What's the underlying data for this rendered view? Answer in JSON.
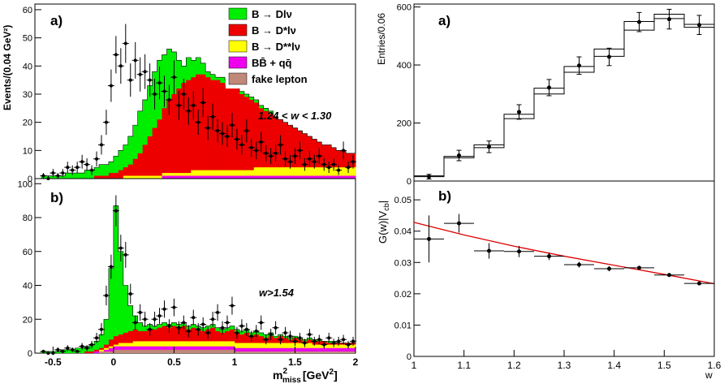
{
  "chart_data": [
    {
      "panel": "left-a",
      "type": "stacked-histogram",
      "panel_label": "a)",
      "ylabel": "Events/(0.04 GeV²)",
      "annotation": "1.24 < w < 1.30",
      "xlim": [
        -0.65,
        2.0
      ],
      "ylim": [
        0,
        62
      ],
      "yticks": [
        0,
        10,
        20,
        30,
        40,
        50,
        60
      ],
      "legend": {
        "position": "top-right",
        "entries": [
          {
            "name": "B → Dlν",
            "color": "#00ee00"
          },
          {
            "name": "B → D*lν",
            "color": "#ee0000"
          },
          {
            "name": "B → D**lν",
            "color": "#ffff00"
          },
          {
            "name": "BB̄ + qq̄",
            "color": "#ee00ee"
          },
          {
            "name": "fake lepton",
            "color": "#c08878"
          }
        ]
      },
      "series_order": [
        "fake lepton",
        "BB̄ + qq̄",
        "B → D**lν",
        "B → D*lν",
        "B → Dlν"
      ],
      "bin_edges_start": -0.6,
      "bin_width": 0.04,
      "stack_totals": [
        1,
        1,
        1,
        1,
        1,
        2,
        2,
        2,
        2,
        3,
        3,
        4,
        5,
        5,
        6,
        8,
        10,
        12,
        15,
        19,
        24,
        28,
        33,
        38,
        42,
        44,
        46,
        45,
        42,
        40,
        43,
        42,
        43,
        41,
        38,
        37,
        36,
        36,
        35,
        34,
        33,
        31,
        30,
        29,
        28,
        26,
        25,
        24,
        22,
        21,
        20,
        19,
        18,
        17,
        16,
        15,
        14,
        13,
        12,
        12,
        11,
        10,
        10,
        9,
        9,
        8,
        8,
        7,
        7,
        7,
        6,
        6,
        6,
        6,
        5,
        5,
        5,
        5,
        5,
        5
      ],
      "dstar_tops": [
        0,
        0,
        0,
        0,
        0,
        0,
        0,
        0,
        0,
        0,
        0,
        1,
        1,
        1,
        2,
        2,
        3,
        4,
        5,
        7,
        9,
        12,
        15,
        18,
        21,
        25,
        28,
        30,
        32,
        34,
        35,
        36,
        37,
        37,
        36,
        35,
        35,
        34,
        33,
        33,
        32,
        30,
        29,
        28,
        27,
        25,
        24,
        23,
        22,
        21,
        20,
        19,
        18,
        17,
        16,
        15,
        14,
        13,
        12,
        12,
        11,
        10,
        10,
        9,
        9,
        8,
        8,
        7,
        7,
        7,
        6,
        6,
        6,
        6,
        5,
        5,
        5,
        5,
        5,
        5
      ],
      "dss_tops": [
        0,
        0,
        0,
        0,
        0,
        0,
        0,
        0,
        0,
        0,
        0,
        0,
        0,
        0,
        0,
        0,
        0,
        1,
        1,
        1,
        1,
        1,
        1,
        1,
        1,
        2,
        2,
        2,
        2,
        2,
        2,
        3,
        3,
        3,
        3,
        3,
        3,
        3,
        3,
        3,
        3,
        3,
        3,
        3,
        4,
        4,
        4,
        4,
        4,
        4,
        4,
        4,
        4,
        4,
        4,
        4,
        4,
        4,
        4,
        4,
        4,
        4,
        4,
        4,
        4,
        4,
        4,
        4,
        4,
        4,
        4,
        4,
        4,
        4,
        4,
        4,
        4,
        4,
        4,
        4
      ],
      "bg_tops": [
        0,
        0,
        0,
        0,
        0,
        0,
        0,
        0,
        0,
        0,
        0,
        0,
        0,
        0,
        0,
        0,
        0,
        0,
        0,
        0,
        0,
        0,
        0,
        0,
        0,
        1,
        1,
        1,
        1,
        1,
        1,
        1,
        1,
        1,
        1,
        1,
        1,
        1,
        1,
        1,
        1,
        1,
        1,
        1,
        1,
        1,
        1,
        1,
        1,
        1,
        1,
        1,
        1,
        1,
        1,
        1,
        1,
        1,
        1,
        1,
        1,
        1,
        1,
        1,
        1,
        1,
        1,
        1,
        1,
        1,
        1,
        1,
        1,
        1,
        1,
        1,
        1,
        1,
        1,
        1
      ],
      "points_x": [
        -0.58,
        -0.54,
        -0.5,
        -0.46,
        -0.42,
        -0.38,
        -0.34,
        -0.3,
        -0.26,
        -0.22,
        -0.18,
        -0.14,
        -0.1,
        -0.06,
        -0.02,
        0.02,
        0.06,
        0.1,
        0.14,
        0.18,
        0.22,
        0.26,
        0.3,
        0.34,
        0.38,
        0.42,
        0.46,
        0.5,
        0.54,
        0.58,
        0.62,
        0.66,
        0.7,
        0.74,
        0.78,
        0.82,
        0.86,
        0.9,
        0.94,
        0.98,
        1.02,
        1.06,
        1.1,
        1.14,
        1.18,
        1.22,
        1.26,
        1.3,
        1.34,
        1.38,
        1.42,
        1.46,
        1.5,
        1.54,
        1.58,
        1.62,
        1.66,
        1.7,
        1.74,
        1.78,
        1.82,
        1.86,
        1.9,
        1.94,
        1.98
      ],
      "points_y": [
        1,
        0,
        2,
        1,
        2,
        4,
        3,
        4,
        6,
        5,
        3,
        7,
        12,
        20,
        33,
        44,
        40,
        48,
        35,
        42,
        37,
        38,
        35,
        30,
        34,
        31,
        28,
        36,
        26,
        30,
        24,
        26,
        20,
        27,
        18,
        22,
        17,
        16,
        15,
        19,
        14,
        12,
        17,
        11,
        10,
        13,
        9,
        8,
        9,
        12,
        7,
        6,
        8,
        10,
        5,
        7,
        6,
        8,
        5,
        4,
        5,
        3,
        10,
        4,
        6
      ]
    },
    {
      "panel": "left-b",
      "type": "stacked-histogram",
      "panel_label": "b)",
      "annotation": "w>1.54",
      "xlabel": "m²miss [GeV²]",
      "xlim": [
        -0.65,
        2.0
      ],
      "ylim": [
        0,
        103
      ],
      "yticks": [
        0,
        20,
        40,
        60,
        80,
        100
      ],
      "xticks": [
        -0.5,
        0,
        0.5,
        1,
        1.5,
        2
      ],
      "xticklabels": [
        "-0.5",
        "0",
        "0.5",
        "1",
        "1.5",
        "2"
      ],
      "bin_edges_start": -0.6,
      "bin_width": 0.04,
      "stack_totals": [
        1,
        1,
        1,
        1,
        2,
        2,
        2,
        3,
        3,
        4,
        5,
        7,
        11,
        20,
        50,
        87,
        60,
        40,
        28,
        22,
        18,
        16,
        17,
        16,
        17,
        18,
        17,
        18,
        17,
        18,
        16,
        17,
        16,
        15,
        16,
        17,
        15,
        14,
        15,
        16,
        14,
        13,
        14,
        12,
        13,
        12,
        11,
        12,
        10,
        11,
        10,
        9,
        10,
        9,
        8,
        9,
        8,
        8,
        7,
        7,
        7,
        6,
        6,
        6,
        6,
        5,
        5,
        5,
        5,
        5,
        5,
        5,
        5,
        5,
        5,
        5,
        5,
        5,
        5,
        5
      ],
      "dstar_tops": [
        0,
        0,
        0,
        0,
        0,
        0,
        0,
        0,
        0,
        1,
        1,
        2,
        3,
        5,
        8,
        10,
        11,
        12,
        13,
        14,
        13,
        13,
        14,
        14,
        15,
        16,
        15,
        16,
        15,
        16,
        14,
        15,
        14,
        13,
        14,
        15,
        13,
        12,
        13,
        14,
        12,
        11,
        12,
        10,
        11,
        10,
        9,
        10,
        9,
        10,
        9,
        8,
        9,
        8,
        7,
        8,
        7,
        7,
        7,
        6,
        6,
        6,
        6,
        6,
        6,
        5,
        5,
        5,
        5,
        5,
        5,
        5,
        5,
        5,
        5,
        5,
        5,
        5,
        5,
        5
      ],
      "dss_tops": [
        0,
        0,
        0,
        0,
        0,
        0,
        0,
        0,
        0,
        0,
        0,
        1,
        2,
        3,
        4,
        5,
        6,
        6,
        6,
        7,
        7,
        7,
        7,
        7,
        7,
        7,
        7,
        7,
        7,
        7,
        7,
        7,
        7,
        7,
        7,
        7,
        7,
        7,
        7,
        7,
        6,
        6,
        6,
        6,
        6,
        6,
        6,
        6,
        6,
        6,
        6,
        6,
        6,
        6,
        6,
        6,
        5,
        5,
        5,
        5,
        5,
        5,
        5,
        5,
        5,
        5,
        4,
        4,
        4,
        4,
        4,
        4,
        4,
        4,
        4,
        4,
        4,
        4,
        4,
        4
      ],
      "bg_tops": [
        0,
        0,
        0,
        0,
        0,
        0,
        0,
        0,
        0,
        0,
        0,
        1,
        1,
        2,
        3,
        4,
        4,
        4,
        4,
        4,
        4,
        4,
        4,
        4,
        4,
        4,
        4,
        4,
        4,
        4,
        4,
        4,
        4,
        4,
        4,
        4,
        4,
        4,
        4,
        4,
        3,
        3,
        3,
        3,
        3,
        3,
        3,
        3,
        3,
        3,
        3,
        3,
        3,
        3,
        3,
        3,
        3,
        3,
        3,
        3,
        3,
        3,
        3,
        3,
        3,
        3,
        2,
        2,
        2,
        2,
        2,
        2,
        2,
        2,
        2,
        2,
        2,
        2,
        2,
        2
      ],
      "fake_tops": [
        0,
        0,
        0,
        0,
        0,
        0,
        0,
        0,
        0,
        0,
        0,
        0,
        1,
        1,
        1,
        2,
        2,
        2,
        2,
        2,
        2,
        2,
        2,
        2,
        2,
        2,
        2,
        2,
        2,
        2,
        2,
        2,
        2,
        2,
        2,
        2,
        2,
        2,
        2,
        2,
        1,
        1,
        1,
        1,
        1,
        1,
        1,
        1,
        1,
        1,
        1,
        1,
        1,
        1,
        1,
        1,
        1,
        1,
        1,
        1,
        1,
        1,
        1,
        1,
        1,
        1,
        1,
        1,
        1,
        1,
        1,
        1,
        1,
        1,
        1,
        1,
        1,
        1,
        1,
        1
      ],
      "points_x": [
        -0.58,
        -0.54,
        -0.5,
        -0.46,
        -0.42,
        -0.38,
        -0.34,
        -0.3,
        -0.26,
        -0.22,
        -0.18,
        -0.14,
        -0.1,
        -0.06,
        -0.02,
        0.02,
        0.06,
        0.1,
        0.14,
        0.18,
        0.22,
        0.26,
        0.3,
        0.34,
        0.38,
        0.42,
        0.46,
        0.5,
        0.54,
        0.58,
        0.62,
        0.66,
        0.7,
        0.74,
        0.78,
        0.82,
        0.86,
        0.9,
        0.94,
        0.98,
        1.02,
        1.06,
        1.1,
        1.14,
        1.18,
        1.22,
        1.26,
        1.3,
        1.34,
        1.38,
        1.42,
        1.46,
        1.5,
        1.54,
        1.58,
        1.62,
        1.66,
        1.7,
        1.74,
        1.78,
        1.82,
        1.86,
        1.9,
        1.94,
        1.98
      ],
      "points_y": [
        1,
        0,
        0,
        2,
        1,
        3,
        2,
        1,
        4,
        3,
        5,
        9,
        14,
        34,
        51,
        84,
        62,
        58,
        35,
        18,
        24,
        20,
        14,
        20,
        22,
        26,
        16,
        27,
        15,
        18,
        13,
        21,
        14,
        17,
        12,
        20,
        24,
        15,
        18,
        28,
        12,
        16,
        14,
        10,
        13,
        18,
        8,
        11,
        15,
        8,
        12,
        10,
        7,
        9,
        6,
        11,
        7,
        8,
        5,
        9,
        6,
        7,
        8,
        5,
        7
      ]
    },
    {
      "panel": "right-a",
      "type": "histogram",
      "panel_label": "a)",
      "ylabel": "Entries/0.06",
      "xlim": [
        1.0,
        1.6
      ],
      "ylim": [
        0,
        610
      ],
      "yticks": [
        0,
        200,
        400,
        600
      ],
      "bin_edges": [
        1.0,
        1.06,
        1.12,
        1.18,
        1.24,
        1.3,
        1.36,
        1.42,
        1.48,
        1.54,
        1.6
      ],
      "histogram_1": [
        18,
        85,
        125,
        230,
        320,
        395,
        455,
        550,
        575,
        540
      ],
      "histogram_2": [
        15,
        80,
        115,
        215,
        300,
        375,
        430,
        520,
        560,
        530
      ],
      "points": [
        {
          "x": 1.03,
          "y": 15,
          "err": 8
        },
        {
          "x": 1.09,
          "y": 88,
          "err": 18
        },
        {
          "x": 1.15,
          "y": 118,
          "err": 20
        },
        {
          "x": 1.21,
          "y": 238,
          "err": 25
        },
        {
          "x": 1.27,
          "y": 322,
          "err": 28
        },
        {
          "x": 1.33,
          "y": 398,
          "err": 30
        },
        {
          "x": 1.39,
          "y": 428,
          "err": 30
        },
        {
          "x": 1.45,
          "y": 548,
          "err": 33
        },
        {
          "x": 1.51,
          "y": 558,
          "err": 34
        },
        {
          "x": 1.57,
          "y": 538,
          "err": 33
        }
      ]
    },
    {
      "panel": "right-b",
      "type": "scatter",
      "panel_label": "b)",
      "ylabel": "G(w)|Vcb|",
      "xlabel": "w",
      "xlim": [
        1.0,
        1.6
      ],
      "ylim": [
        0,
        0.056
      ],
      "yticks": [
        0,
        0.01,
        0.02,
        0.03,
        0.04,
        0.05
      ],
      "yticklabels": [
        "0",
        "0.01",
        "0.02",
        "0.03",
        "0.04",
        "0.05"
      ],
      "xticks": [
        1,
        1.1,
        1.2,
        1.3,
        1.4,
        1.5,
        1.6
      ],
      "xticklabels": [
        "1",
        "1.1",
        "1.2",
        "1.3",
        "1.4",
        "1.5",
        "1.6"
      ],
      "points": [
        {
          "x": 1.03,
          "y": 0.0375,
          "err": 0.0075
        },
        {
          "x": 1.09,
          "y": 0.0425,
          "err": 0.003
        },
        {
          "x": 1.15,
          "y": 0.0337,
          "err": 0.0025
        },
        {
          "x": 1.21,
          "y": 0.0335,
          "err": 0.0018
        },
        {
          "x": 1.27,
          "y": 0.032,
          "err": 0.0012
        },
        {
          "x": 1.33,
          "y": 0.0293,
          "err": 0.0009
        },
        {
          "x": 1.39,
          "y": 0.028,
          "err": 0.0008
        },
        {
          "x": 1.45,
          "y": 0.0283,
          "err": 0.0006
        },
        {
          "x": 1.51,
          "y": 0.026,
          "err": 0.0005
        },
        {
          "x": 1.57,
          "y": 0.0233,
          "err": 0.0005
        }
      ],
      "fit_curve": {
        "color": "#dd0000",
        "x": [
          1.0,
          1.1,
          1.2,
          1.3,
          1.4,
          1.5,
          1.6
        ],
        "y": [
          0.0428,
          0.0388,
          0.0352,
          0.032,
          0.0291,
          0.0262,
          0.0232
        ]
      }
    }
  ]
}
